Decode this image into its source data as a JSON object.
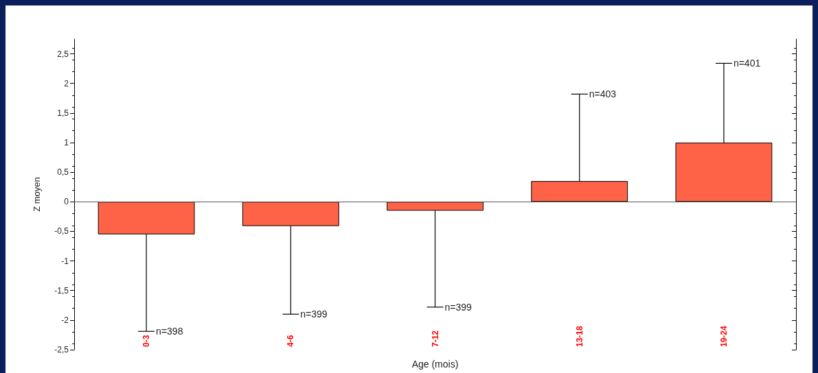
{
  "chart_data": {
    "type": "bar",
    "xlabel": "Age (mois)",
    "ylabel": "Z moyen",
    "categories": [
      "0-3",
      "4-6",
      "7-12",
      "13-18",
      "19-24"
    ],
    "values": [
      -0.55,
      -0.41,
      -0.15,
      0.35,
      1.0
    ],
    "color": "#ff6347",
    "errors": [
      [
        -2.19,
        -0.55
      ],
      [
        -1.9,
        -0.41
      ],
      [
        -1.78,
        -0.15
      ],
      [
        0.35,
        1.82
      ],
      [
        1.0,
        2.34
      ]
    ],
    "annotations": [
      {
        "text": "n=398",
        "x": "0-3",
        "y": -2.19
      },
      {
        "text": "n=399",
        "x": "4-6",
        "y": -1.9
      },
      {
        "text": "n=399",
        "x": "7-12",
        "y": -1.78
      },
      {
        "text": "n=403",
        "x": "13-18",
        "y": 1.82
      },
      {
        "text": "n=401",
        "x": "19-24",
        "y": 2.34
      }
    ],
    "ylim": [
      -2.5,
      2.75
    ],
    "yticks": [
      {
        "value": -2.5,
        "label": "-2,5"
      },
      {
        "value": -2,
        "label": "-2"
      },
      {
        "value": -1.5,
        "label": "-1,5"
      },
      {
        "value": -1,
        "label": "-1"
      },
      {
        "value": -0.5,
        "label": "-0,5"
      },
      {
        "value": 0,
        "label": "0"
      },
      {
        "value": 0.5,
        "label": "0,5"
      },
      {
        "value": 1,
        "label": "1"
      },
      {
        "value": 1.5,
        "label": "1,5"
      },
      {
        "value": 2,
        "label": "2"
      },
      {
        "value": 2.5,
        "label": "2,5"
      }
    ],
    "ref_lines": [
      {
        "axis": "y",
        "value": 0,
        "color": "#555555"
      }
    ],
    "grid": false
  }
}
